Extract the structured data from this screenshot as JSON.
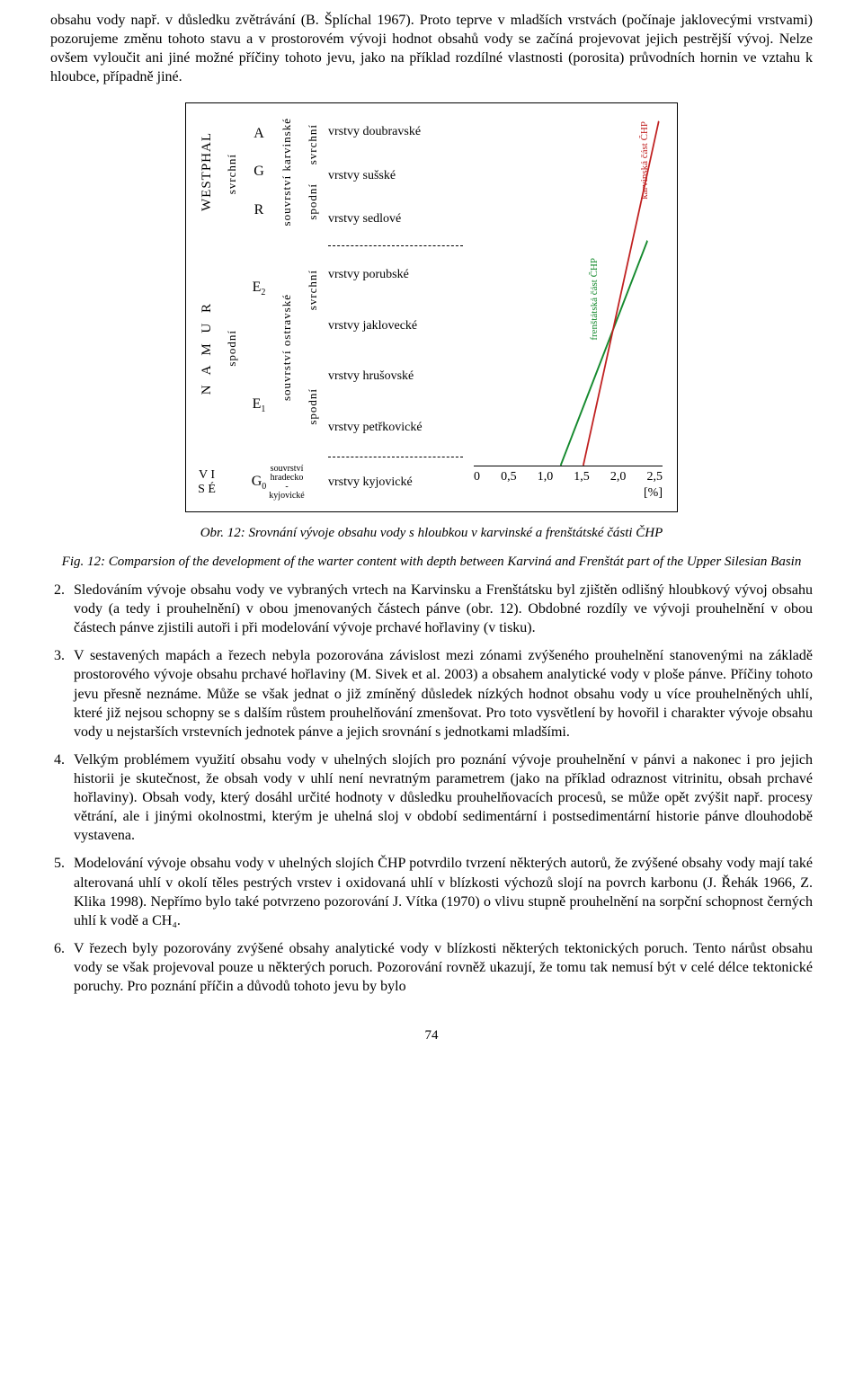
{
  "intro_paragraph": "obsahu vody např. v důsledku zvětrávání (B. Šplíchal 1967). Proto teprve v mladších vrstvách (počínaje jaklovecými vrstvami) pozorujeme změnu tohoto stavu a v prostorovém vývoji hodnot obsahů vody se začíná projevovat jejich pestrější vývoj. Nelze ovšem vyloučit ani jiné možné příčiny tohoto jevu, jako na příklad rozdílné vlastnosti (porosita) průvodních hornin ve vztahu k hloubce, případně jiné.",
  "figure": {
    "strat_epochs": {
      "top": "WESTPHAL",
      "mid": "N A M U R",
      "bottom": "V I S É"
    },
    "sub_top": {
      "upper": "svrchní",
      "lower": "spodní"
    },
    "letters_top": [
      "A",
      "G",
      "R"
    ],
    "letters_mid_upper": "E",
    "letters_mid_upper_sub": "2",
    "letters_mid_lower": "E",
    "letters_mid_lower_sub": "1",
    "letters_bottom": "G",
    "letters_bottom_sub": "0",
    "suite_upper": "souvrství karvinské",
    "suite_mid": "souvrství ostravské",
    "suite_bottom_a": "souvrství",
    "suite_bottom_b": "hradecko",
    "suite_bottom_c": "-kyjovické",
    "sub_suite_1": "svrchní",
    "sub_suite_2": "spodní",
    "sub_suite_3": "svrchní",
    "sub_suite_4": "spodní",
    "layers": [
      "vrstvy doubravské",
      "vrstvy sušské",
      "vrstvy sedlové",
      "vrstvy porubské",
      "vrstvy jaklovecké",
      "vrstvy hrušovské",
      "vrstvy petřkovické",
      "vrstvy kyjovické"
    ],
    "axis_ticks": [
      "0",
      "0,5",
      "1,0",
      "1,5",
      "2,0",
      "2,5"
    ],
    "axis_unit": "[%]",
    "series": [
      {
        "name": "frenštátská část ČHP",
        "color": "#158a2e",
        "points": [
          [
            0.46,
            1.0
          ],
          [
            0.92,
            0.36
          ]
        ]
      },
      {
        "name": "karvinská část ČHP",
        "color": "#c02020",
        "points": [
          [
            0.58,
            1.0
          ],
          [
            0.98,
            0.02
          ]
        ]
      }
    ],
    "label_red": "karvinská  část  ČHP",
    "label_green": "frenštátská  část  ČHP"
  },
  "caption_cz": "Obr. 12: Srovnání vývoje obsahu vody s hloubkou v karvinské a frenštátské části ČHP",
  "caption_en": "Fig. 12: Comparsion of the development of the warter content with depth between Karviná and Frenštát part of the Upper Silesian Basin",
  "list_start_note": "2.",
  "items": [
    "Sledováním vývoje obsahu vody ve vybraných vrtech na Karvinsku a Frenštátsku byl zjištěn odlišný hloubkový vývoj obsahu vody (a tedy i prouhelnění) v obou jmenovaných částech pánve (obr. 12). Obdobné rozdíly ve vývoji prouhelnění v obou částech pánve zjistili autoři i při modelování vývoje prchavé hořlaviny (v tisku).",
    "V sestavených mapách a řezech nebyla pozorována závislost mezi zónami zvýšeného prouhelnění stanovenými na základě prostorového vývoje obsahu prchavé hořlaviny (M. Sivek et al. 2003) a obsahem analytické vody v ploše pánve. Příčiny tohoto jevu přesně neznáme. Může se však jednat o již zmíněný důsledek nízkých hodnot obsahu vody u více prouhelněných uhlí, které již nejsou schopny se s dalším růstem prouhelňování zmenšovat. Pro toto vysvětlení by hovořil i charakter vývoje obsahu vody u nejstarších vrstevních jednotek pánve a jejich srovnání s jednotkami mladšími.",
    "Velkým problémem využití obsahu vody v uhelných slojích pro poznání vývoje prouhelnění v pánvi a nakonec i pro jejich historii je skutečnost, že obsah vody v uhlí není nevratným parametrem (jako na příklad odraznost vitrinitu, obsah prchavé hořlaviny). Obsah vody, který dosáhl určité hodnoty v důsledku prouhelňovacích procesů, se může opět zvýšit např. procesy větrání, ale i jinými okolnostmi, kterým je uhelná sloj v období sedimentární i postsedimentární historie pánve dlouhodobě vystavena.",
    "Modelování vývoje obsahu vody v uhelných slojích ČHP potvrdilo tvrzení některých autorů, že zvýšené obsahy vody mají také alterovaná uhlí v okolí těles pestrých vrstev i oxidovaná uhlí v blízkosti výchozů slojí na povrch karbonu (J. Řehák 1966, Z. Klika 1998). Nepřímo bylo také potvrzeno pozorování J. Vítka (1970) o vlivu stupně prouhelnění na sorpční schopnost černých uhlí k vodě a CH₄.",
    "V řezech byly pozorovány zvýšené obsahy analytické vody v blízkosti některých tektonických poruch. Tento nárůst obsahu vody se však projevoval pouze u některých poruch. Pozorování rovněž ukazují, že tomu tak nemusí být v celé délce tektonické poruchy. Pro poznání příčin a důvodů tohoto jevu by bylo"
  ],
  "page_number": "74"
}
